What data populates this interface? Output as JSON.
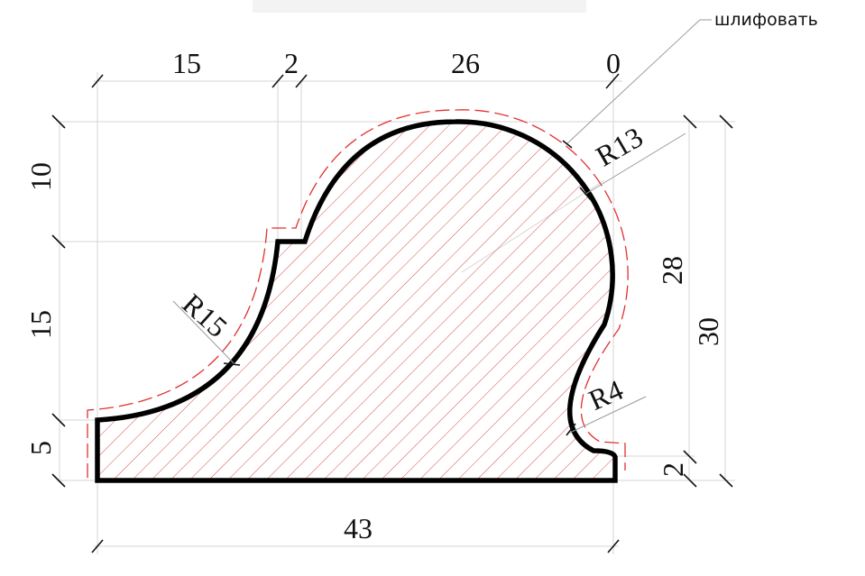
{
  "annotation": {
    "note": "шлифовать"
  },
  "dimensions": {
    "top": [
      "15",
      "2",
      "26",
      "0"
    ],
    "left": [
      "10",
      "15",
      "5"
    ],
    "right_inner": "28",
    "right_outer": "30",
    "right_small": "2",
    "bottom": "43"
  },
  "radii": {
    "r13": "R13",
    "r15": "R15",
    "r4": "R4"
  },
  "colors": {
    "outline": "#000000",
    "hatch": "#d43a3a",
    "offset_line": "#e23030",
    "extension": "#d6d6d6"
  }
}
